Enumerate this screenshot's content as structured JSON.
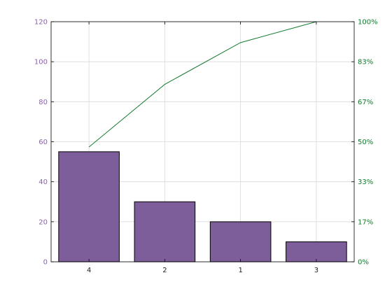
{
  "chart_data": {
    "type": "bar",
    "subtype": "pareto",
    "title": "",
    "xlabel": "",
    "ylabel": "",
    "categories": [
      "4",
      "2",
      "1",
      "3"
    ],
    "values": [
      55,
      30,
      20,
      10
    ],
    "cumulative_percent": [
      47.8,
      73.9,
      91.3,
      100
    ],
    "ylim": [
      0,
      120
    ],
    "yticks": [
      "0",
      "20",
      "40",
      "60",
      "80",
      "100",
      "120"
    ],
    "y2lim": [
      0,
      100
    ],
    "y2ticks": [
      "0%",
      "17%",
      "33%",
      "50%",
      "67%",
      "83%",
      "100%"
    ],
    "grid": true,
    "colors": {
      "bar": "#7e5e9a",
      "bar_edge": "#000000",
      "line": "#117a2c",
      "left_axis_text": "#8a63a8",
      "right_axis_text": "#117a2c",
      "grid": "#d9d9d9"
    }
  }
}
